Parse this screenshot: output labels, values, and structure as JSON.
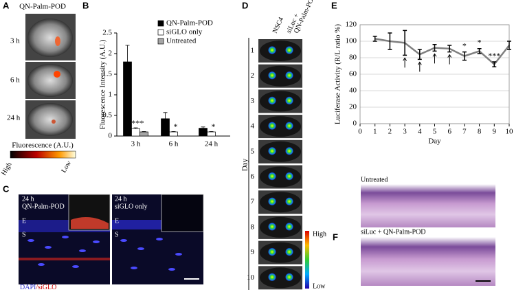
{
  "panel_labels": [
    "A",
    "B",
    "C",
    "D",
    "E",
    "F"
  ],
  "panel_a": {
    "title": "QN-Palm-POD",
    "times": [
      "3 h",
      "6 h",
      "24 h"
    ],
    "scale_label": "Fluorescence (A.U.)",
    "high": "High",
    "low": "Low"
  },
  "panel_c": {
    "left": {
      "time": "24 h",
      "condition": "QN-Palm-POD",
      "epithelium": "E",
      "stroma": "S"
    },
    "right": {
      "time": "24 h",
      "condition": "siGLO only",
      "epithelium": "E",
      "stroma": "S"
    },
    "stain_dapi": "DAPI",
    "stain_siglo": "/siGLO"
  },
  "panel_d": {
    "col1": "NSC4",
    "col2": "siLuc +",
    "col2b": "QN-Palm-POD",
    "axis": "Day",
    "rows": [
      "1",
      "2",
      "3",
      "4",
      "5",
      "6",
      "7",
      "8",
      "9",
      "10"
    ],
    "high": "High",
    "low": "Low"
  },
  "panel_f": {
    "top": "Untreated",
    "bottom": "siLuc + QN-Palm-POD"
  },
  "chart_data": [
    {
      "type": "bar",
      "ylabel": "Fluorescence Intensity (A.U.)",
      "categories": [
        "3 h",
        "6 h",
        "24 h"
      ],
      "series": [
        {
          "name": "QN-Palm-POD",
          "color": "#000000",
          "values": [
            1.8,
            0.42,
            0.19
          ],
          "errors": [
            0.4,
            0.15,
            0.03
          ]
        },
        {
          "name": "siGLO only",
          "color": "#ffffff",
          "values": [
            0.18,
            0.1,
            0.1
          ],
          "errors": [
            0.02,
            0.01,
            0.01
          ]
        },
        {
          "name": "Untreated",
          "color": "#a6a6a6",
          "values": [
            0.1,
            null,
            null
          ],
          "errors": [
            0.01,
            null,
            null
          ]
        }
      ],
      "ylim": [
        0,
        2.5
      ],
      "yticks": [
        0,
        0.5,
        1,
        1.5,
        2,
        2.5
      ],
      "legend": "upper right",
      "annotations": [
        "***",
        "*",
        "*"
      ]
    },
    {
      "type": "line",
      "xlabel": "Day",
      "ylabel": "Luciferase Activity (R/L ratio %)",
      "x": [
        1,
        2,
        3,
        4,
        5,
        6,
        7,
        8,
        9,
        10
      ],
      "values": [
        103,
        100,
        98,
        84,
        92,
        91,
        82,
        88,
        72,
        95
      ],
      "errors": [
        3,
        10,
        15,
        6,
        4,
        4,
        5,
        3,
        3,
        5
      ],
      "color": "#7f7f7f",
      "xlim": [
        0,
        10
      ],
      "xticks": [
        0,
        1,
        2,
        3,
        4,
        5,
        6,
        7,
        8,
        9,
        10
      ],
      "ylim": [
        0,
        120
      ],
      "yticks": [
        0,
        20,
        40,
        60,
        80,
        100,
        120
      ],
      "grid": true,
      "annotations": [
        "*",
        "*",
        "***"
      ]
    }
  ]
}
